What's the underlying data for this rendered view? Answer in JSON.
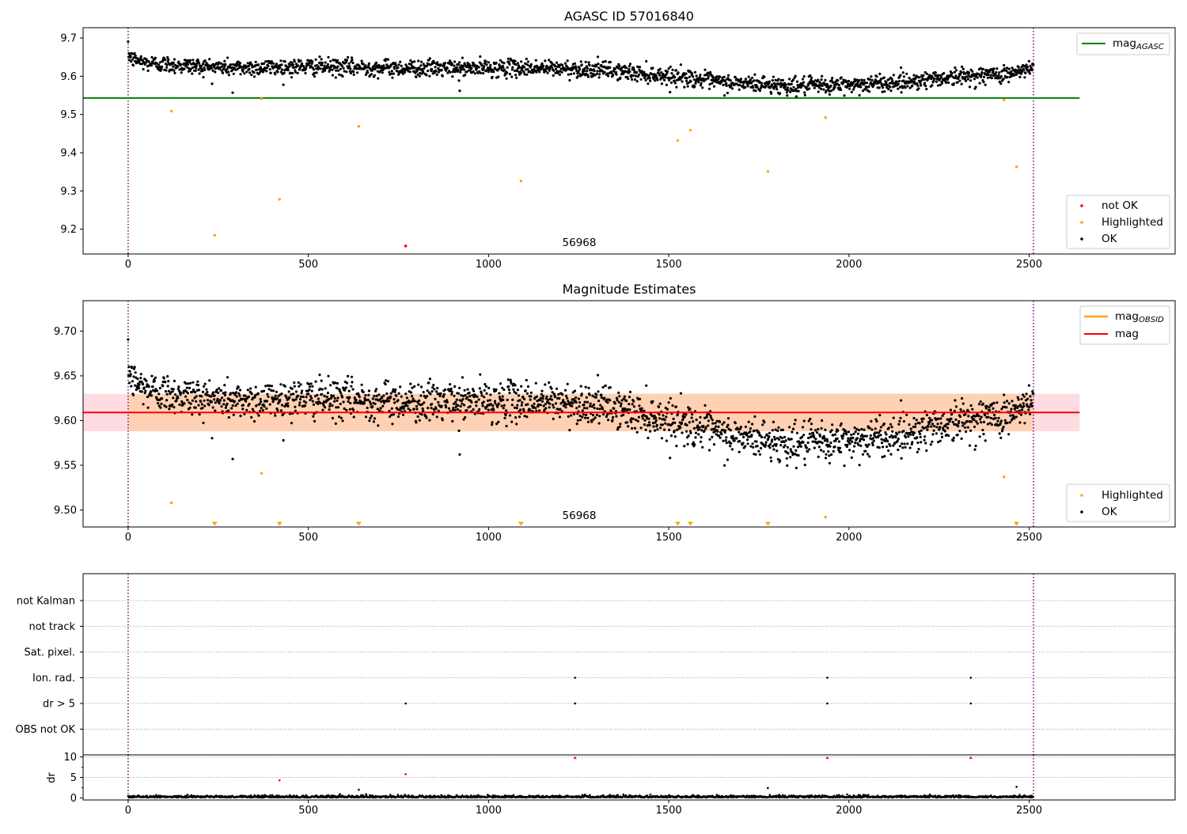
{
  "chart_data": [
    {
      "type": "scatter",
      "title": "AGASC ID 57016840",
      "xlim": [
        -125,
        2905
      ],
      "ylim": [
        9.135,
        9.727
      ],
      "xticks": [
        "0",
        "500",
        "1000",
        "1500",
        "2000",
        "2500"
      ],
      "yticks": [
        "9.2",
        "9.3",
        "9.4",
        "9.5",
        "9.6",
        "9.7"
      ],
      "vlines": [
        0,
        2512
      ],
      "vline_color": "#800080",
      "annotation": {
        "text": "56968",
        "x": 1250,
        "y": 9.16
      },
      "mag_agasc": {
        "value": 9.543,
        "x_range": [
          -125,
          2640
        ],
        "color": "#008000"
      },
      "legend_top": [
        {
          "label": "mag",
          "subscript": "AGASC",
          "color": "#008000"
        }
      ],
      "legend_bottom": [
        {
          "label": "not OK",
          "color": "#ff0000"
        },
        {
          "label": "Highlighted",
          "color": "#ffa500"
        },
        {
          "label": "OK",
          "color": "#000000"
        }
      ],
      "ok_trend": {
        "x": [
          0,
          10,
          50,
          150,
          300,
          500,
          700,
          900,
          1100,
          1300,
          1450,
          1550,
          1650,
          1750,
          1850,
          1950,
          2050,
          2150,
          2250,
          2350,
          2450,
          2512
        ],
        "y": [
          9.66,
          9.645,
          9.635,
          9.628,
          9.622,
          9.625,
          9.622,
          9.62,
          9.622,
          9.618,
          9.605,
          9.597,
          9.583,
          9.58,
          9.574,
          9.576,
          9.58,
          9.585,
          9.595,
          9.602,
          9.607,
          9.62
        ],
        "spread": 0.011
      },
      "ok_outliers": [
        {
          "x": 290,
          "y": 9.557
        },
        {
          "x": 920,
          "y": 9.562
        }
      ],
      "highlighted": [
        {
          "x": 120,
          "y": 9.509
        },
        {
          "x": 240,
          "y": 9.184
        },
        {
          "x": 370,
          "y": 9.541
        },
        {
          "x": 420,
          "y": 9.278
        },
        {
          "x": 640,
          "y": 9.469
        },
        {
          "x": 1090,
          "y": 9.326
        },
        {
          "x": 1525,
          "y": 9.432
        },
        {
          "x": 1560,
          "y": 9.459
        },
        {
          "x": 1775,
          "y": 9.351
        },
        {
          "x": 1935,
          "y": 9.492
        },
        {
          "x": 2430,
          "y": 9.538
        },
        {
          "x": 2465,
          "y": 9.363
        }
      ],
      "not_ok": [
        {
          "x": 770,
          "y": 9.156
        }
      ]
    },
    {
      "type": "scatter",
      "title": "Magnitude Estimates",
      "xlim": [
        -125,
        2905
      ],
      "ylim": [
        9.481,
        9.734
      ],
      "xticks": [
        "0",
        "500",
        "1000",
        "1500",
        "2000",
        "2500"
      ],
      "yticks": [
        "9.50",
        "9.55",
        "9.60",
        "9.65",
        "9.70"
      ],
      "vlines": [
        0,
        2512
      ],
      "annotation": {
        "text": "56968",
        "x": 1250,
        "y": 9.493
      },
      "mag": {
        "value": 9.609,
        "x_range": [
          -125,
          2640
        ],
        "color": "#ff0000"
      },
      "mag_band": {
        "low": 9.588,
        "high": 9.63,
        "color": "#ffc0cb"
      },
      "mag_obsid_band": {
        "low": 9.588,
        "high": 9.63,
        "x_range": [
          0,
          2512
        ],
        "color": "#ffa500"
      },
      "legend_top": [
        {
          "label": "mag",
          "subscript": "OBSID",
          "color": "#ffa500"
        },
        {
          "label": "mag",
          "subscript": "",
          "color": "#ff0000"
        }
      ],
      "legend_bottom": [
        {
          "label": "Highlighted",
          "color": "#ffa500"
        },
        {
          "label": "OK",
          "color": "#000000"
        }
      ],
      "highlighted": [
        {
          "x": 120,
          "y": 9.508
        },
        {
          "x": 370,
          "y": 9.541
        },
        {
          "x": 1935,
          "y": 9.492
        },
        {
          "x": 2430,
          "y": 9.537
        }
      ],
      "offscale_low": [
        240,
        420,
        640,
        1090,
        1525,
        1560,
        1775,
        2465
      ]
    },
    {
      "type": "scatter",
      "categories": [
        "not Kalman",
        "not track",
        "Sat. pixel.",
        "Ion. rad.",
        "dr > 5",
        "OBS not OK"
      ],
      "xlim": [
        -125,
        2905
      ],
      "vlines": [
        0,
        2512
      ],
      "flag_points": [
        {
          "category": "Ion. rad.",
          "x": [
            1240,
            1940,
            2338
          ]
        },
        {
          "category": "dr > 5",
          "x": [
            770,
            1240,
            1940,
            2338
          ]
        }
      ]
    },
    {
      "type": "scatter",
      "ylabel": "dr",
      "ylim": [
        -0.5,
        10.5
      ],
      "yticks": [
        "0",
        "5",
        "10"
      ],
      "xticks": [
        "0",
        "500",
        "1000",
        "1500",
        "2000",
        "2500"
      ],
      "xlim": [
        -125,
        2905
      ],
      "vlines": [
        0,
        2512
      ],
      "outliers": [
        {
          "x": 420,
          "y": 4.3,
          "color": "#ff0000"
        },
        {
          "x": 770,
          "y": 5.8,
          "color": "#ff0000"
        },
        {
          "x": 640,
          "y": 2.0,
          "color": "#000000"
        },
        {
          "x": 1775,
          "y": 2.4,
          "color": "#000000"
        },
        {
          "x": 2465,
          "y": 2.7,
          "color": "#000000"
        }
      ],
      "capped": [
        1240,
        1940,
        2338
      ]
    }
  ]
}
